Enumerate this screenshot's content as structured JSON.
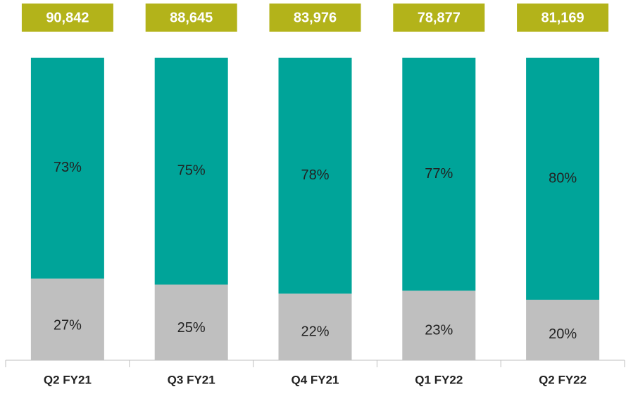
{
  "chart_data": {
    "type": "stacked_bar_100",
    "categories": [
      "Q2 FY21",
      "Q3 FY21",
      "Q4 FY21",
      "Q1 FY22",
      "Q2 FY22"
    ],
    "series": [
      {
        "color": "#bfbfbf",
        "values": [
          27,
          25,
          22,
          23,
          20
        ],
        "value_labels": [
          "27%",
          "25%",
          "22%",
          "23%",
          "20%"
        ]
      },
      {
        "color": "#00a499",
        "values": [
          73,
          75,
          78,
          77,
          80
        ],
        "value_labels": [
          "73%",
          "75%",
          "78%",
          "77%",
          "80%"
        ]
      }
    ],
    "totals": {
      "color": "#b3b31a",
      "values": [
        90842,
        88645,
        83976,
        78877,
        81169
      ],
      "value_labels": [
        "90,842",
        "88,645",
        "83,976",
        "78,877",
        "81,169"
      ]
    }
  }
}
